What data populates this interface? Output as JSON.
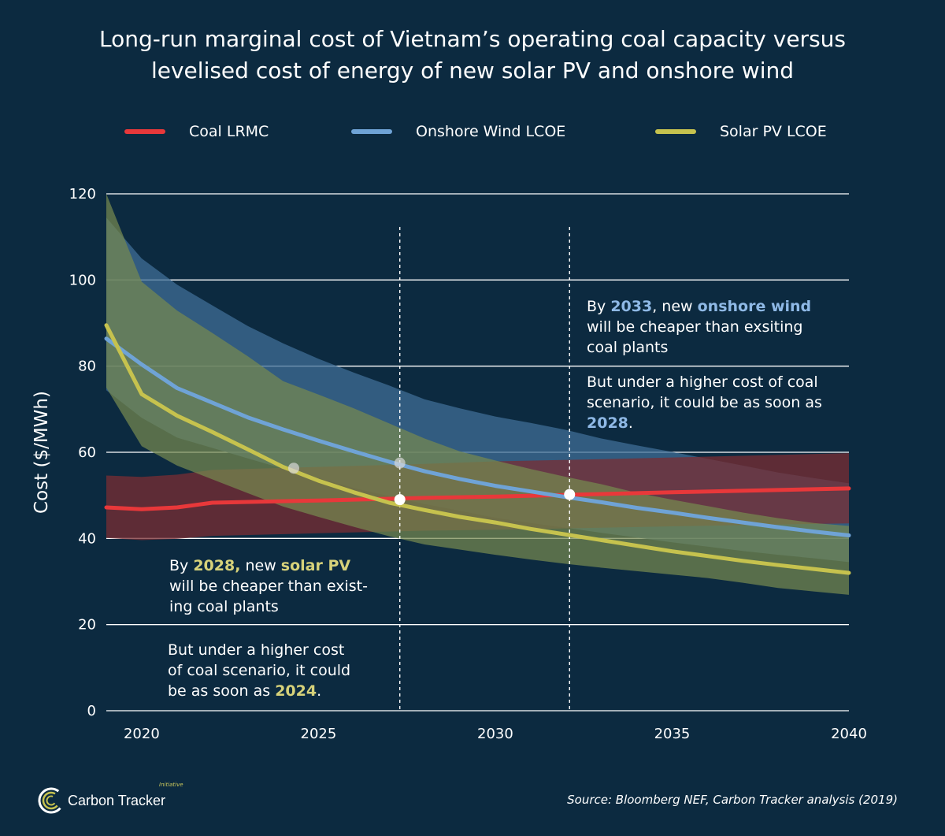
{
  "title_line1": "Long-run marginal cost of Vietnam’s operating coal capacity versus",
  "title_line2": "levelised cost of energy of new solar PV and onshore wind",
  "colors": {
    "background": "#0c2a40",
    "coal": "#e8383a",
    "wind": "#6fa3d6",
    "solar": "#c6c24e",
    "coal_band": "#7a2d33",
    "wind_band": "#3f6e96",
    "solar_band": "#76894f"
  },
  "legend": [
    {
      "label": "Coal LRMC",
      "color": "#e8383a"
    },
    {
      "label": "Onshore Wind LCOE",
      "color": "#6fa3d6"
    },
    {
      "label": "Solar PV LCOE",
      "color": "#c6c24e"
    }
  ],
  "annotations": {
    "solar_p1": "By ",
    "solar_year1": "2028,",
    "solar_p2": " new ",
    "solar_tech": "solar PV",
    "solar_line2": "will be cheaper than exist-",
    "solar_line3": "ing coal plants",
    "solar_b1": "But under a higher cost",
    "solar_b2": "of coal scenario, it could",
    "solar_b3": "be as soon as ",
    "solar_year2": "2024",
    "solar_b3_end": ".",
    "wind_p1": "By ",
    "wind_year1": "2033",
    "wind_p2": ", new ",
    "wind_tech": "onshore wind",
    "wind_line2": "will be cheaper than exsiting",
    "wind_line3": "coal plants",
    "wind_b1": "But under a higher cost of coal",
    "wind_b2": "scenario, it could be as soon as",
    "wind_year2": "2028",
    "wind_b3_end": "."
  },
  "source": "Source: Bloomberg NEF, Carbon Tracker analysis (2019)",
  "logo": {
    "text": "Carbon Tracker",
    "tag": "Initiative"
  },
  "chart_data": {
    "type": "line",
    "title": "Long-run marginal cost of Vietnam’s operating coal capacity versus levelised cost of energy of new solar PV and onshore wind",
    "xlabel": "",
    "ylabel": "Cost ($/MWh)",
    "xlim": [
      2019,
      2040
    ],
    "ylim": [
      0,
      120
    ],
    "xticks": [
      2020,
      2025,
      2030,
      2035,
      2040
    ],
    "yticks": [
      0,
      20,
      40,
      60,
      80,
      100,
      120
    ],
    "grid": "horizontal",
    "legend_position": "top",
    "series": [
      {
        "name": "Coal LRMC",
        "x": [
          2019,
          2020,
          2021,
          2022,
          2025,
          2028,
          2030,
          2033,
          2035,
          2040
        ],
        "values": [
          47.2,
          46.8,
          47.2,
          48.3,
          48.8,
          49.4,
          49.7,
          50.3,
          50.7,
          51.6
        ],
        "band_high": [
          54.6,
          54.3,
          54.8,
          55.9,
          56.6,
          57.3,
          57.9,
          58.4,
          58.8,
          59.8
        ],
        "band_low": [
          40.1,
          39.6,
          39.9,
          40.6,
          41.2,
          41.8,
          42.0,
          42.5,
          42.8,
          43.5
        ]
      },
      {
        "name": "Onshore Wind LCOE",
        "x": [
          2019,
          2020,
          2021,
          2022,
          2023,
          2024,
          2025,
          2026,
          2027,
          2028,
          2029,
          2030,
          2031,
          2032,
          2033,
          2034,
          2035,
          2036,
          2037,
          2038,
          2039,
          2040
        ],
        "values": [
          86.4,
          80.4,
          74.9,
          71.5,
          68.1,
          65.3,
          62.7,
          60.2,
          57.8,
          55.6,
          53.8,
          52.2,
          50.9,
          49.6,
          48.4,
          47.1,
          46.0,
          44.8,
          43.7,
          42.6,
          41.6,
          40.7
        ],
        "band_high": [
          114.5,
          105.0,
          98.9,
          94.1,
          89.3,
          85.3,
          81.7,
          78.5,
          75.5,
          72.3,
          70.2,
          68.3,
          66.8,
          65.2,
          63.2,
          61.6,
          60.1,
          58.5,
          56.9,
          55.3,
          54.0,
          52.8
        ],
        "band_low": [
          74.4,
          68.0,
          63.4,
          61.0,
          58.6,
          56.2,
          54.0,
          51.7,
          49.8,
          48.0,
          46.4,
          44.8,
          43.6,
          42.5,
          41.3,
          40.2,
          39.1,
          38.1,
          37.1,
          36.2,
          35.4,
          34.5
        ]
      },
      {
        "name": "Solar PV LCOE",
        "x": [
          2019,
          2020,
          2021,
          2022,
          2023,
          2024,
          2025,
          2026,
          2027,
          2028,
          2029,
          2030,
          2031,
          2032,
          2033,
          2034,
          2035,
          2036,
          2037,
          2038,
          2039,
          2040
        ],
        "values": [
          89.5,
          73.5,
          68.5,
          64.7,
          60.7,
          56.6,
          53.4,
          50.7,
          48.3,
          46.6,
          45.0,
          43.7,
          42.2,
          40.9,
          39.6,
          38.3,
          37.0,
          35.9,
          34.8,
          33.8,
          32.9,
          32.0
        ],
        "band_high": [
          120.0,
          99.6,
          92.9,
          87.7,
          82.3,
          76.5,
          73.4,
          70.2,
          66.7,
          63.2,
          60.2,
          58.1,
          56.1,
          54.3,
          52.6,
          50.6,
          49.0,
          47.5,
          46.0,
          44.7,
          43.6,
          42.9
        ],
        "band_low": [
          75.0,
          61.4,
          56.9,
          53.7,
          50.5,
          47.4,
          45.0,
          42.7,
          40.5,
          38.6,
          37.4,
          36.2,
          35.1,
          34.1,
          33.2,
          32.4,
          31.6,
          30.8,
          29.7,
          28.5,
          27.7,
          26.9
        ]
      }
    ],
    "vertical_markers": [
      2027.3,
      2032.1
    ],
    "highlight_points": [
      {
        "x": 2027.3,
        "y": 49.0,
        "style": "solid"
      },
      {
        "x": 2032.1,
        "y": 50.2,
        "style": "solid"
      },
      {
        "x": 2027.3,
        "y": 57.5,
        "style": "faded"
      },
      {
        "x": 2024.3,
        "y": 56.3,
        "style": "faded"
      }
    ]
  }
}
